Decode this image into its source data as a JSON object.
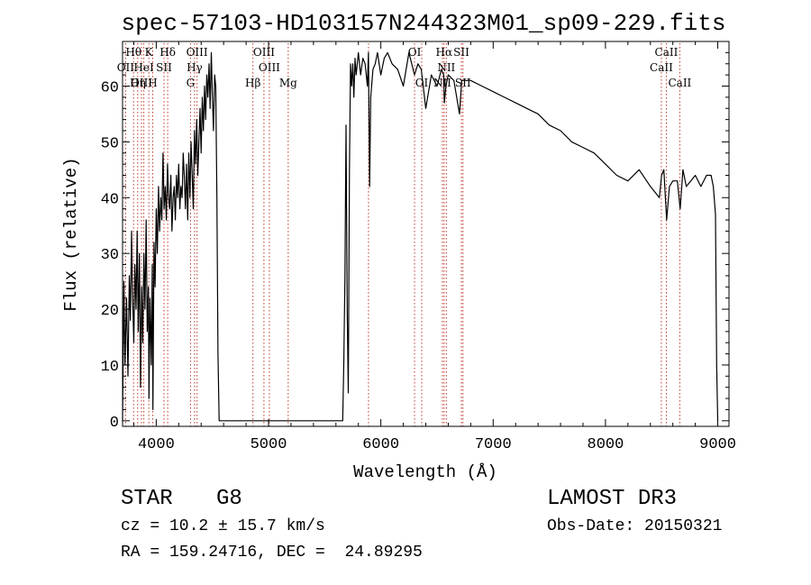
{
  "chart_data": {
    "type": "line",
    "title": "spec-57103-HD103157N244323M01_sp09-229.fits",
    "xlabel": "Wavelength (Å)",
    "ylabel": "Flux (relative)",
    "xlim": [
      3700,
      9100
    ],
    "ylim": [
      -1,
      68
    ],
    "xticks": [
      4000,
      5000,
      6000,
      7000,
      8000,
      9000
    ],
    "yticks": [
      0,
      10,
      20,
      30,
      40,
      50,
      60
    ],
    "grid": false,
    "line_features": [
      {
        "label": "Hθ",
        "wavelength": 3798,
        "row": 1
      },
      {
        "label": "OII",
        "wavelength": 3727,
        "row": 2
      },
      {
        "label": "OIII",
        "wavelength": 3869,
        "row": 3
      },
      {
        "label": "K",
        "wavelength": 3934,
        "row": 1
      },
      {
        "label": "HeI",
        "wavelength": 3889,
        "row": 2
      },
      {
        "label": "Hη",
        "wavelength": 3835,
        "row": 3
      },
      {
        "label": "H",
        "wavelength": 3969,
        "row": 3
      },
      {
        "label": "SII",
        "wavelength": 4069,
        "row": 2
      },
      {
        "label": "Hδ",
        "wavelength": 4102,
        "row": 1
      },
      {
        "label": "OIII",
        "wavelength": 4363,
        "row": 1
      },
      {
        "label": "Hγ",
        "wavelength": 4341,
        "row": 2
      },
      {
        "label": "G",
        "wavelength": 4305,
        "row": 3
      },
      {
        "label": "OIII",
        "wavelength": 4959,
        "row": 1
      },
      {
        "label": "OIII",
        "wavelength": 5007,
        "row": 2
      },
      {
        "label": "Hβ",
        "wavelength": 4861,
        "row": 3
      },
      {
        "label": "Mg",
        "wavelength": 5175,
        "row": 3
      },
      {
        "label": "OI",
        "wavelength": 6300,
        "row": 1
      },
      {
        "label": "OI",
        "wavelength": 6364,
        "row": 3
      },
      {
        "label": "Hα",
        "wavelength": 6563,
        "row": 1
      },
      {
        "label": "SII",
        "wavelength": 6717,
        "row": 1
      },
      {
        "label": "NII",
        "wavelength": 6583,
        "row": 2
      },
      {
        "label": "NII",
        "wavelength": 6548,
        "row": 3
      },
      {
        "label": "SII",
        "wavelength": 6731,
        "row": 3
      },
      {
        "label": "CaII",
        "wavelength": 8542,
        "row": 1
      },
      {
        "label": "CaII",
        "wavelength": 8498,
        "row": 2
      },
      {
        "label": "CaII",
        "wavelength": 8662,
        "row": 3
      }
    ],
    "feature_marker_wavelengths": [
      3727,
      3798,
      3835,
      3869,
      3889,
      3934,
      3969,
      4069,
      4102,
      4305,
      4341,
      4363,
      4861,
      4959,
      5007,
      5175,
      5890,
      6300,
      6364,
      6548,
      6563,
      6583,
      6717,
      6731,
      8498,
      8542,
      8662
    ],
    "series": [
      {
        "name": "spectrum",
        "x": [
          3700,
          3712,
          3722,
          3735,
          3748,
          3760,
          3770,
          3780,
          3790,
          3800,
          3810,
          3820,
          3830,
          3840,
          3850,
          3860,
          3870,
          3880,
          3890,
          3900,
          3910,
          3920,
          3930,
          3935,
          3945,
          3955,
          3965,
          3970,
          3980,
          3990,
          4000,
          4010,
          4020,
          4030,
          4040,
          4050,
          4060,
          4070,
          4080,
          4090,
          4100,
          4110,
          4120,
          4130,
          4140,
          4150,
          4160,
          4170,
          4180,
          4190,
          4200,
          4210,
          4220,
          4230,
          4240,
          4250,
          4260,
          4270,
          4280,
          4290,
          4300,
          4310,
          4320,
          4330,
          4340,
          4350,
          4360,
          4370,
          4380,
          4390,
          4400,
          4410,
          4420,
          4430,
          4440,
          4450,
          4460,
          4470,
          4480,
          4490,
          4500,
          4510,
          4520,
          4530,
          4540,
          4550,
          4560,
          5660,
          5670,
          5680,
          5690,
          5700,
          5710,
          5720,
          5730,
          5740,
          5750,
          5760,
          5770,
          5780,
          5800,
          5820,
          5840,
          5860,
          5880,
          5890,
          5900,
          5910,
          5930,
          5950,
          5970,
          6000,
          6030,
          6060,
          6100,
          6150,
          6200,
          6250,
          6300,
          6330,
          6360,
          6400,
          6450,
          6500,
          6540,
          6560,
          6565,
          6580,
          6600,
          6650,
          6700,
          6720,
          6740,
          6800,
          6900,
          7000,
          7100,
          7200,
          7300,
          7400,
          7500,
          7600,
          7700,
          7800,
          7900,
          8000,
          8100,
          8200,
          8300,
          8400,
          8480,
          8500,
          8520,
          8545,
          8570,
          8600,
          8640,
          8665,
          8690,
          8720,
          8760,
          8800,
          8850,
          8900,
          8940,
          8960,
          8980,
          8990,
          9000
        ],
        "y": [
          0,
          25,
          10,
          22,
          8,
          26,
          18,
          34,
          22,
          14,
          28,
          20,
          34,
          16,
          30,
          6,
          24,
          14,
          30,
          20,
          36,
          16,
          24,
          4,
          22,
          10,
          28,
          2,
          32,
          24,
          38,
          30,
          42,
          34,
          40,
          36,
          48,
          38,
          42,
          36,
          46,
          40,
          38,
          44,
          34,
          40,
          42,
          36,
          44,
          40,
          46,
          38,
          42,
          40,
          48,
          44,
          38,
          46,
          36,
          48,
          40,
          50,
          44,
          38,
          52,
          46,
          54,
          44,
          50,
          56,
          48,
          58,
          52,
          60,
          54,
          62,
          58,
          64,
          56,
          66,
          58,
          52,
          62,
          60,
          40,
          12,
          0,
          0,
          10,
          26,
          53,
          20,
          5,
          45,
          64,
          60,
          64,
          58,
          65,
          62,
          66,
          62,
          65,
          64,
          60,
          66,
          42,
          58,
          63,
          64,
          66,
          62,
          65,
          66,
          64,
          63,
          60,
          66,
          62,
          64,
          63,
          56,
          62,
          60,
          63,
          62,
          57,
          60,
          62,
          61,
          55,
          61,
          61,
          61,
          60,
          59,
          58,
          57,
          56,
          55,
          53,
          52,
          50,
          49,
          48,
          46,
          44,
          43,
          45,
          42,
          40,
          44,
          45,
          36,
          42,
          43,
          43,
          38,
          45,
          42,
          43,
          44,
          42,
          44,
          44,
          42,
          37,
          10,
          0
        ]
      }
    ]
  },
  "info": {
    "object_class": "STAR",
    "subclass": "G8",
    "survey": "LAMOST DR3",
    "redshift_line": "cz = 10.2 ± 15.7 km/s",
    "obs_date_line": "Obs-Date: 20150321",
    "coords_line": "RA = 159.24716, DEC =  24.89295"
  }
}
